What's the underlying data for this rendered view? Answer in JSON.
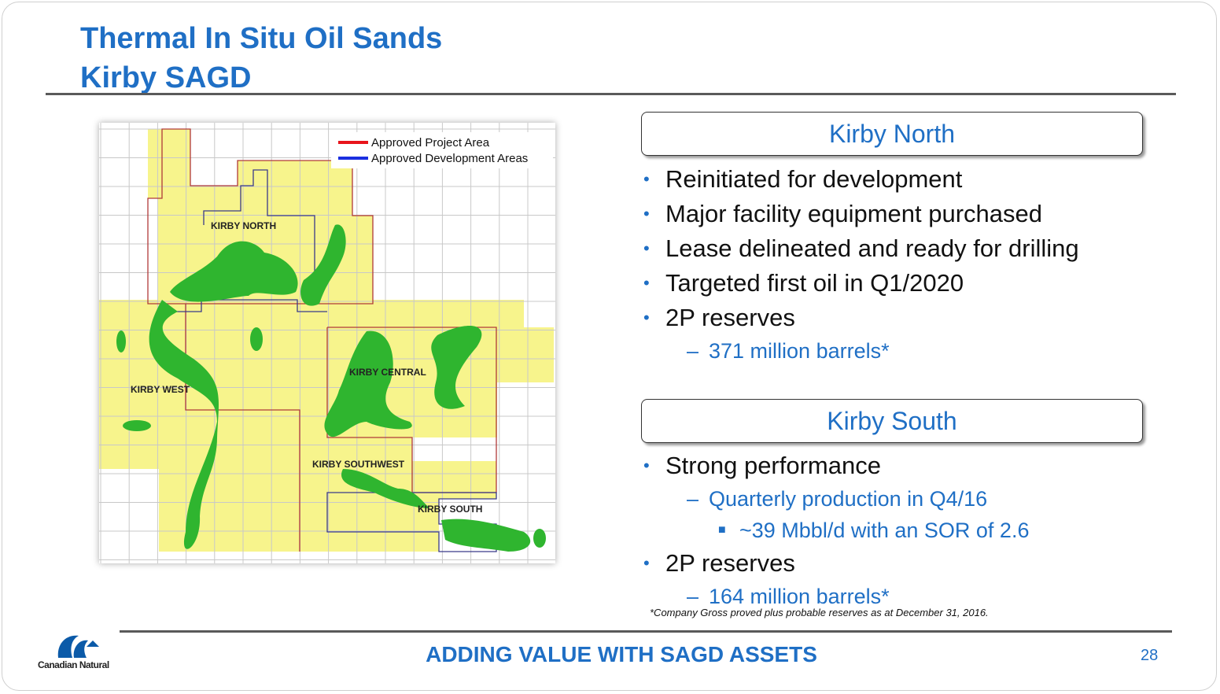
{
  "header": {
    "title_lines": [
      "Thermal In Situ Oil Sands",
      "Kirby SAGD"
    ]
  },
  "map": {
    "legend": [
      {
        "text": "Approved Project Area",
        "color": "#e8141b"
      },
      {
        "text": "Approved Development Areas",
        "color": "#1a2fe0"
      }
    ],
    "labels": [
      "KIRBY NORTH",
      "KIRBY CENTRAL",
      "KIRBY WEST",
      "KIRBY SOUTHWEST",
      "KIRBY SOUTH"
    ]
  },
  "sections": [
    {
      "heading": "Kirby North",
      "items": [
        {
          "text": "Reinitiated for development"
        },
        {
          "text": "Major facility equipment purchased"
        },
        {
          "text": "Lease delineated and ready for drilling"
        },
        {
          "text": "Targeted first oil in Q1/2020"
        },
        {
          "text": "2P reserves",
          "sub": [
            {
              "text": "371 million barrels*"
            }
          ]
        }
      ]
    },
    {
      "heading": "Kirby South",
      "items": [
        {
          "text": "Strong performance",
          "sub": [
            {
              "text": "Quarterly production in Q4/16",
              "sub": [
                {
                  "text": "~39 Mbbl/d with an SOR of 2.6"
                }
              ]
            }
          ]
        },
        {
          "text": "2P reserves",
          "sub": [
            {
              "text": "164 million barrels*"
            }
          ]
        }
      ]
    }
  ],
  "footnote": "*Company Gross proved plus probable reserves as at December 31, 2016.",
  "footer": {
    "logo": "Canadian Natural",
    "tagline": "ADDING VALUE WITH SAGD ASSETS",
    "page": "28"
  }
}
